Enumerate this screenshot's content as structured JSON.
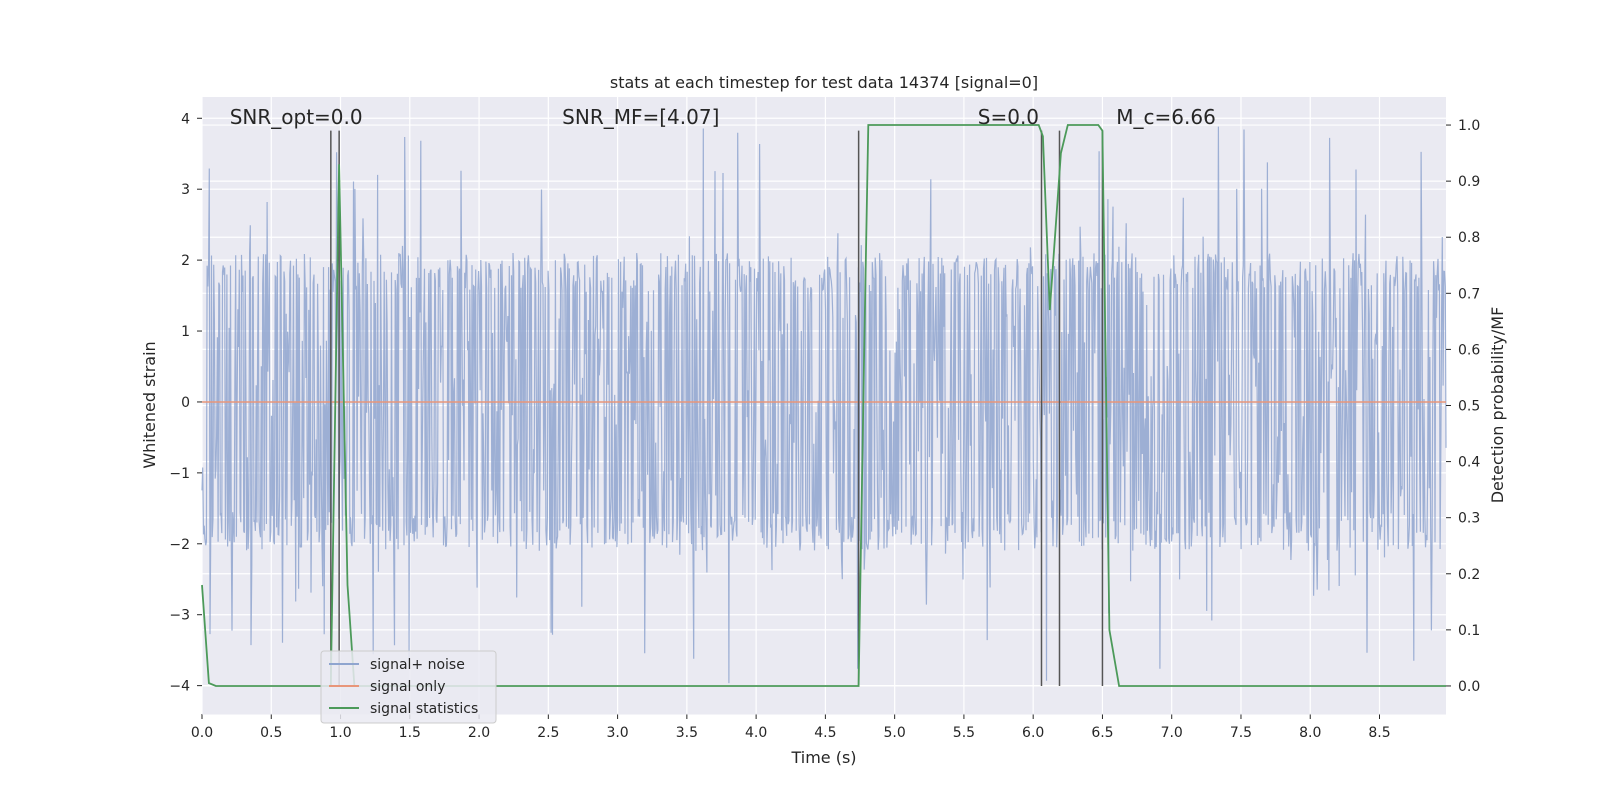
{
  "chart_data": {
    "type": "line",
    "title": "stats at each timestep for test data 14374 [signal=0]",
    "xlabel": "Time (s)",
    "ylabel": "Whitened strain",
    "y2label": "Detection probability/MF",
    "xlim": [
      0.0,
      8.98
    ],
    "ylim": [
      -4.4,
      4.3
    ],
    "y2lim": [
      -0.05,
      1.05
    ],
    "x_ticks": [
      "0.0",
      "0.5",
      "1.0",
      "1.5",
      "2.0",
      "2.5",
      "3.0",
      "3.5",
      "4.0",
      "4.5",
      "5.0",
      "5.5",
      "6.0",
      "6.5",
      "7.0",
      "7.5",
      "8.0",
      "8.5"
    ],
    "y_ticks": [
      "4",
      "3",
      "2",
      "1",
      "0",
      "−1",
      "−2",
      "−3",
      "−4"
    ],
    "y2_ticks": [
      "1.0",
      "0.9",
      "0.8",
      "0.7",
      "0.6",
      "0.5",
      "0.4",
      "0.3",
      "0.2",
      "0.1",
      "0.0"
    ],
    "grid": true,
    "legend_position": "lower-left",
    "annotations": [
      {
        "text": "SNR_opt=0.0",
        "x": 0.2
      },
      {
        "text": "SNR_MF=[4.07]",
        "x": 2.6
      },
      {
        "text": "S=0.0",
        "x": 5.6
      },
      {
        "text": "M_c=6.66",
        "x": 6.6
      }
    ],
    "vertical_lines": [
      0.93,
      0.99,
      4.74,
      6.06,
      6.19,
      6.5
    ],
    "series": [
      {
        "name": "signal+ noise",
        "color": "#8fa5cf",
        "style": "noise",
        "envelope": {
          "typical_upper": 2.1,
          "typical_lower": -2.1,
          "peak_upper": 3.9,
          "peak_lower": -4.0
        }
      },
      {
        "name": "signal only",
        "color": "#e8967a",
        "x": [
          0.0,
          8.98
        ],
        "y": [
          0.0,
          0.0
        ]
      },
      {
        "name": "signal statistics",
        "color": "#4c9a5a",
        "axis": "right",
        "x": [
          0.0,
          0.05,
          0.1,
          0.9,
          0.93,
          0.99,
          1.05,
          1.1,
          4.74,
          4.78,
          4.81,
          6.04,
          6.07,
          6.12,
          6.2,
          6.25,
          6.47,
          6.5,
          6.55,
          6.62,
          8.98
        ],
        "y": [
          0.18,
          0.005,
          0.0,
          0.0,
          0.0,
          0.93,
          0.18,
          0.0,
          0.0,
          0.6,
          1.0,
          1.0,
          0.98,
          0.67,
          0.95,
          1.0,
          1.0,
          0.99,
          0.1,
          0.0,
          0.0
        ]
      }
    ]
  }
}
